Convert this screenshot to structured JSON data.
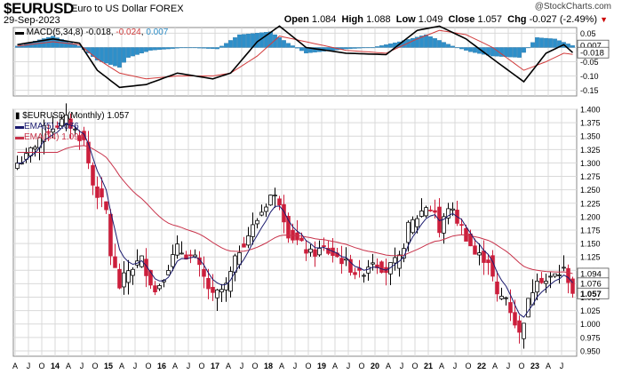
{
  "header": {
    "symbol": "$EURUSD",
    "description": "Euro to US Dollar",
    "exchange": "FOREX",
    "date": "29-Sep-2023",
    "watermark": "@StockCharts.com",
    "open_label": "Open",
    "open": "1.084",
    "high_label": "High",
    "high": "1.088",
    "low_label": "Low",
    "low": "1.049",
    "close_label": "Close",
    "close": "1.057",
    "chg_label": "Chg",
    "chg": "-0.027 (-2.49%)"
  },
  "macd_legend": {
    "name": "MACD(5,34,8)",
    "macd": "-0.018",
    "signal": "-0.024",
    "hist": "0.007"
  },
  "price_legend": {
    "main": "$EURUSD (Monthly) 1.057",
    "ema5": "EMA(5) 1.076",
    "ema34": "EMA(34) 1.094"
  },
  "colors": {
    "up": "#000000",
    "down": "#cc1f3c",
    "ema5": "#1a1a6e",
    "ema34": "#c8324a",
    "macd_line": "#000000",
    "signal_line": "#d23c3c",
    "histogram": "#2e8fc9",
    "grid": "#d9d9d9"
  },
  "chart_data": [
    {
      "type": "line",
      "title": "MACD(5,34,8)",
      "y_ticks": [
        0.05,
        0.0,
        -0.05,
        -0.1,
        -0.15
      ],
      "y_tick_labels": [
        "0.05",
        "0.00",
        "-0.05",
        "-0.10",
        "-0.15"
      ],
      "ylim": [
        -0.17,
        0.07
      ],
      "value_tags": [
        "0.007",
        "-0.018"
      ],
      "histogram_anchors": [
        [
          "2013-04",
          0.005
        ],
        [
          "2013-12",
          0.04
        ],
        [
          "2014-06",
          0.005
        ],
        [
          "2014-10",
          -0.045
        ],
        [
          "2015-03",
          -0.07
        ],
        [
          "2015-05",
          -0.035
        ],
        [
          "2015-10",
          -0.01
        ],
        [
          "2016-06",
          0.0
        ],
        [
          "2017-01",
          -0.005
        ],
        [
          "2017-06",
          0.045
        ],
        [
          "2018-01",
          0.055
        ],
        [
          "2018-05",
          0.015
        ],
        [
          "2018-09",
          -0.02
        ],
        [
          "2019-06",
          -0.005
        ],
        [
          "2019-12",
          0.0
        ],
        [
          "2020-06",
          0.02
        ],
        [
          "2020-12",
          0.045
        ],
        [
          "2021-06",
          0.005
        ],
        [
          "2021-10",
          -0.015
        ],
        [
          "2022-03",
          -0.03
        ],
        [
          "2022-09",
          -0.035
        ],
        [
          "2023-01",
          0.035
        ],
        [
          "2023-05",
          0.03
        ],
        [
          "2023-09",
          0.007
        ]
      ],
      "macd_anchors": [
        [
          "2013-04",
          0.01
        ],
        [
          "2013-12",
          0.03
        ],
        [
          "2014-06",
          0.015
        ],
        [
          "2014-10",
          -0.08
        ],
        [
          "2015-03",
          -0.14
        ],
        [
          "2015-09",
          -0.13
        ],
        [
          "2016-04",
          -0.09
        ],
        [
          "2016-12",
          -0.11
        ],
        [
          "2017-04",
          -0.09
        ],
        [
          "2017-10",
          0.02
        ],
        [
          "2018-03",
          0.075
        ],
        [
          "2018-09",
          0.0
        ],
        [
          "2019-06",
          -0.02
        ],
        [
          "2020-03",
          -0.025
        ],
        [
          "2020-10",
          0.06
        ],
        [
          "2021-03",
          0.075
        ],
        [
          "2021-09",
          0.03
        ],
        [
          "2022-03",
          -0.04
        ],
        [
          "2022-10",
          -0.12
        ],
        [
          "2023-03",
          -0.02
        ],
        [
          "2023-07",
          0.01
        ],
        [
          "2023-09",
          -0.018
        ]
      ],
      "signal_anchors": [
        [
          "2013-04",
          0.005
        ],
        [
          "2013-12",
          0.02
        ],
        [
          "2014-06",
          0.01
        ],
        [
          "2014-10",
          -0.04
        ],
        [
          "2015-03",
          -0.09
        ],
        [
          "2015-09",
          -0.11
        ],
        [
          "2016-04",
          -0.1
        ],
        [
          "2016-12",
          -0.1
        ],
        [
          "2017-04",
          -0.09
        ],
        [
          "2017-10",
          -0.03
        ],
        [
          "2018-03",
          0.04
        ],
        [
          "2018-09",
          0.02
        ],
        [
          "2019-06",
          -0.01
        ],
        [
          "2020-03",
          -0.02
        ],
        [
          "2020-10",
          0.03
        ],
        [
          "2021-03",
          0.06
        ],
        [
          "2021-09",
          0.045
        ],
        [
          "2022-03",
          0.0
        ],
        [
          "2022-10",
          -0.08
        ],
        [
          "2023-03",
          -0.05
        ],
        [
          "2023-07",
          -0.02
        ],
        [
          "2023-09",
          -0.024
        ]
      ]
    },
    {
      "type": "line",
      "title": "$EURUSD (Monthly) 1.057",
      "series_kind": "candlestick",
      "y_ticks": [
        0.95,
        0.975,
        1.0,
        1.025,
        1.05,
        1.075,
        1.1,
        1.125,
        1.15,
        1.175,
        1.2,
        1.225,
        1.25,
        1.275,
        1.3,
        1.325,
        1.35,
        1.375,
        1.4
      ],
      "y_tick_labels": [
        "0.950",
        "0.975",
        "1.000",
        "1.025",
        "1.050",
        "1.075",
        "1.100",
        "1.125",
        "1.150",
        "1.175",
        "1.200",
        "1.225",
        "1.250",
        "1.275",
        "1.300",
        "1.325",
        "1.350",
        "1.375",
        "1.400"
      ],
      "ylim": [
        0.94,
        1.4
      ],
      "value_tags": [
        "1.094",
        "1.076",
        "1.057"
      ],
      "x_start": "2013-04",
      "x_end": "2023-09",
      "x_ticks": [
        {
          "d": "2013-04",
          "l": "A"
        },
        {
          "d": "2013-07",
          "l": "J"
        },
        {
          "d": "2013-10",
          "l": "O"
        },
        {
          "d": "2014-01",
          "l": "14"
        },
        {
          "d": "2014-04",
          "l": "A"
        },
        {
          "d": "2014-07",
          "l": "J"
        },
        {
          "d": "2014-10",
          "l": "O"
        },
        {
          "d": "2015-01",
          "l": "15"
        },
        {
          "d": "2015-04",
          "l": "A"
        },
        {
          "d": "2015-07",
          "l": "J"
        },
        {
          "d": "2015-10",
          "l": "O"
        },
        {
          "d": "2016-01",
          "l": "16"
        },
        {
          "d": "2016-04",
          "l": "A"
        },
        {
          "d": "2016-07",
          "l": "J"
        },
        {
          "d": "2016-10",
          "l": "O"
        },
        {
          "d": "2017-01",
          "l": "17"
        },
        {
          "d": "2017-04",
          "l": "A"
        },
        {
          "d": "2017-07",
          "l": "J"
        },
        {
          "d": "2017-10",
          "l": "O"
        },
        {
          "d": "2018-01",
          "l": "18"
        },
        {
          "d": "2018-04",
          "l": "A"
        },
        {
          "d": "2018-07",
          "l": "J"
        },
        {
          "d": "2018-10",
          "l": "O"
        },
        {
          "d": "2019-01",
          "l": "19"
        },
        {
          "d": "2019-04",
          "l": "A"
        },
        {
          "d": "2019-07",
          "l": "J"
        },
        {
          "d": "2019-10",
          "l": "O"
        },
        {
          "d": "2020-01",
          "l": "20"
        },
        {
          "d": "2020-04",
          "l": "A"
        },
        {
          "d": "2020-07",
          "l": "J"
        },
        {
          "d": "2020-10",
          "l": "O"
        },
        {
          "d": "2021-01",
          "l": "21"
        },
        {
          "d": "2021-04",
          "l": "A"
        },
        {
          "d": "2021-07",
          "l": "J"
        },
        {
          "d": "2021-10",
          "l": "O"
        },
        {
          "d": "2022-01",
          "l": "22"
        },
        {
          "d": "2022-04",
          "l": "A"
        },
        {
          "d": "2022-07",
          "l": "J"
        },
        {
          "d": "2022-10",
          "l": "O"
        },
        {
          "d": "2023-01",
          "l": "23"
        },
        {
          "d": "2023-04",
          "l": "A"
        },
        {
          "d": "2023-07",
          "l": "J"
        }
      ],
      "close_anchors": [
        [
          "2013-04",
          1.3
        ],
        [
          "2013-06",
          1.31
        ],
        [
          "2013-10",
          1.36
        ],
        [
          "2014-03",
          1.38
        ],
        [
          "2014-05",
          1.36
        ],
        [
          "2014-07",
          1.34
        ],
        [
          "2014-09",
          1.26
        ],
        [
          "2014-12",
          1.21
        ],
        [
          "2015-01",
          1.13
        ],
        [
          "2015-03",
          1.07
        ],
        [
          "2015-05",
          1.1
        ],
        [
          "2015-08",
          1.12
        ],
        [
          "2015-11",
          1.06
        ],
        [
          "2016-04",
          1.14
        ],
        [
          "2016-08",
          1.12
        ],
        [
          "2016-12",
          1.05
        ],
        [
          "2017-03",
          1.07
        ],
        [
          "2017-06",
          1.14
        ],
        [
          "2017-09",
          1.18
        ],
        [
          "2018-01",
          1.24
        ],
        [
          "2018-03",
          1.23
        ],
        [
          "2018-05",
          1.17
        ],
        [
          "2018-10",
          1.13
        ],
        [
          "2019-01",
          1.14
        ],
        [
          "2019-05",
          1.12
        ],
        [
          "2019-09",
          1.09
        ],
        [
          "2019-12",
          1.12
        ],
        [
          "2020-03",
          1.1
        ],
        [
          "2020-06",
          1.12
        ],
        [
          "2020-08",
          1.18
        ],
        [
          "2020-12",
          1.22
        ],
        [
          "2021-02",
          1.21
        ],
        [
          "2021-03",
          1.17
        ],
        [
          "2021-05",
          1.22
        ],
        [
          "2021-08",
          1.18
        ],
        [
          "2021-11",
          1.13
        ],
        [
          "2022-02",
          1.12
        ],
        [
          "2022-04",
          1.05
        ],
        [
          "2022-06",
          1.05
        ],
        [
          "2022-09",
          0.98
        ],
        [
          "2022-11",
          1.04
        ],
        [
          "2023-01",
          1.09
        ],
        [
          "2023-03",
          1.08
        ],
        [
          "2023-07",
          1.1
        ],
        [
          "2023-08",
          1.084
        ],
        [
          "2023-09",
          1.057
        ]
      ],
      "last_candle": {
        "open": 1.084,
        "high": 1.088,
        "low": 1.049,
        "close": 1.057
      }
    }
  ]
}
